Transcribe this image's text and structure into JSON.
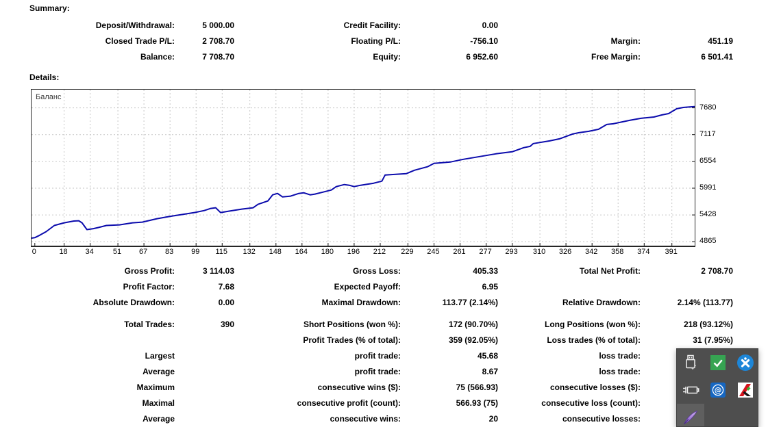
{
  "summary": {
    "title": "Summary:",
    "rows": [
      {
        "c1": {
          "label": "Deposit/Withdrawal:",
          "value": "5 000.00"
        },
        "c2": {
          "label": "Credit Facility:",
          "value": "0.00"
        },
        "c3": {
          "label": "",
          "value": ""
        }
      },
      {
        "c1": {
          "label": "Closed Trade P/L:",
          "value": "2 708.70"
        },
        "c2": {
          "label": "Floating P/L:",
          "value": "-756.10"
        },
        "c3": {
          "label": "Margin:",
          "value": "451.19"
        }
      },
      {
        "c1": {
          "label": "Balance:",
          "value": "7 708.70"
        },
        "c2": {
          "label": "Equity:",
          "value": "6 952.60"
        },
        "c3": {
          "label": "Free Margin:",
          "value": "6 501.41"
        }
      }
    ]
  },
  "details": {
    "title": "Details:"
  },
  "chart_data": {
    "type": "line",
    "title": "",
    "legend": "Баланс",
    "xlabel": "",
    "ylabel": "",
    "grid": "dashed",
    "x_ticks": [
      0,
      18,
      34,
      51,
      67,
      83,
      99,
      115,
      132,
      148,
      164,
      180,
      196,
      212,
      229,
      245,
      261,
      277,
      293,
      310,
      326,
      342,
      358,
      374,
      391
    ],
    "y_ticks": [
      7680,
      7117,
      6554,
      5991,
      5428,
      4865
    ],
    "xlim": [
      -2,
      405
    ],
    "ylim": [
      4782,
      8062
    ],
    "series": [
      {
        "name": "Баланс",
        "color": "#0b0bac",
        "points": [
          [
            -2,
            4940
          ],
          [
            0,
            4950
          ],
          [
            3,
            5000
          ],
          [
            7,
            5077
          ],
          [
            12,
            5206
          ],
          [
            18,
            5263
          ],
          [
            24,
            5300
          ],
          [
            27,
            5306
          ],
          [
            29,
            5263
          ],
          [
            32,
            5120
          ],
          [
            36,
            5140
          ],
          [
            39,
            5163
          ],
          [
            44,
            5206
          ],
          [
            52,
            5220
          ],
          [
            60,
            5263
          ],
          [
            66,
            5277
          ],
          [
            75,
            5349
          ],
          [
            82,
            5392
          ],
          [
            90,
            5435
          ],
          [
            98,
            5478
          ],
          [
            104,
            5520
          ],
          [
            108,
            5564
          ],
          [
            111,
            5579
          ],
          [
            114,
            5478
          ],
          [
            119,
            5507
          ],
          [
            127,
            5550
          ],
          [
            134,
            5579
          ],
          [
            137,
            5651
          ],
          [
            143,
            5722
          ],
          [
            146,
            5851
          ],
          [
            149,
            5880
          ],
          [
            152,
            5808
          ],
          [
            157,
            5823
          ],
          [
            162,
            5880
          ],
          [
            165,
            5894
          ],
          [
            169,
            5851
          ],
          [
            172,
            5866
          ],
          [
            177,
            5909
          ],
          [
            182,
            5952
          ],
          [
            185,
            6024
          ],
          [
            190,
            6067
          ],
          [
            193,
            6052
          ],
          [
            196,
            6024
          ],
          [
            200,
            6052
          ],
          [
            208,
            6095
          ],
          [
            213,
            6138
          ],
          [
            215,
            6267
          ],
          [
            228,
            6296
          ],
          [
            233,
            6368
          ],
          [
            241,
            6440
          ],
          [
            245,
            6512
          ],
          [
            255,
            6540
          ],
          [
            263,
            6598
          ],
          [
            273,
            6655
          ],
          [
            283,
            6712
          ],
          [
            293,
            6756
          ],
          [
            300,
            6842
          ],
          [
            304,
            6870
          ],
          [
            306,
            6928
          ],
          [
            316,
            6985
          ],
          [
            322,
            7028
          ],
          [
            330,
            7129
          ],
          [
            334,
            7157
          ],
          [
            340,
            7186
          ],
          [
            346,
            7229
          ],
          [
            351,
            7330
          ],
          [
            355,
            7344
          ],
          [
            365,
            7416
          ],
          [
            372,
            7459
          ],
          [
            380,
            7487
          ],
          [
            385,
            7531
          ],
          [
            389,
            7559
          ],
          [
            394,
            7660
          ],
          [
            398,
            7688
          ],
          [
            402,
            7700
          ],
          [
            405,
            7706
          ]
        ]
      }
    ]
  },
  "stats": {
    "rows": [
      {
        "c1": {
          "label": "Gross Profit:",
          "value": "3 114.03"
        },
        "c2": {
          "label": "Gross Loss:",
          "value": "405.33"
        },
        "c3": {
          "label": "Total Net Profit:",
          "value": "2 708.70"
        }
      },
      {
        "c1": {
          "label": "Profit Factor:",
          "value": "7.68"
        },
        "c2": {
          "label": "Expected Payoff:",
          "value": "6.95"
        },
        "c3": {
          "label": "",
          "value": ""
        }
      },
      {
        "c1": {
          "label": "Absolute Drawdown:",
          "value": "0.00"
        },
        "c2": {
          "label": "Maximal Drawdown:",
          "value": "113.77 (2.14%)"
        },
        "c3": {
          "label": "Relative Drawdown:",
          "value": "2.14% (113.77)"
        }
      },
      {
        "c1": {
          "label": "Total Trades:",
          "value": "390"
        },
        "c2": {
          "label": "Short Positions (won %):",
          "value": "172 (90.70%)"
        },
        "c3": {
          "label": "Long Positions (won %):",
          "value": "218 (93.12%)"
        }
      },
      {
        "c1": {
          "label": "",
          "value": ""
        },
        "c2": {
          "label": "Profit Trades (% of total):",
          "value": "359 (92.05%)"
        },
        "c3": {
          "label": "Loss trades (% of total):",
          "value": "31 (7.95%)"
        }
      },
      {
        "c1": {
          "label": "Largest",
          "value": ""
        },
        "c2": {
          "label": "profit trade:",
          "value": "45.68"
        },
        "c3": {
          "label": "loss trade:",
          "value": ""
        }
      },
      {
        "c1": {
          "label": "Average",
          "value": ""
        },
        "c2": {
          "label": "profit trade:",
          "value": "8.67"
        },
        "c3": {
          "label": "loss trade:",
          "value": ""
        }
      },
      {
        "c1": {
          "label": "Maximum",
          "value": ""
        },
        "c2": {
          "label": "consecutive wins ($):",
          "value": "75 (566.93)"
        },
        "c3": {
          "label": "consecutive losses ($):",
          "value": ""
        }
      },
      {
        "c1": {
          "label": "Maximal",
          "value": ""
        },
        "c2": {
          "label": "consecutive profit (count):",
          "value": "566.93 (75)"
        },
        "c3": {
          "label": "consecutive loss (count):",
          "value": ""
        }
      },
      {
        "c1": {
          "label": "Average",
          "value": ""
        },
        "c2": {
          "label": "consecutive wins:",
          "value": "20"
        },
        "c3": {
          "label": "consecutive losses:",
          "value": ""
        }
      }
    ]
  },
  "tray": {
    "panel_color": "#4e4e4e",
    "icons": [
      "usb-device",
      "green-check",
      "blue-x",
      "power-battery",
      "at-mail",
      "kaspersky",
      "feather-quill"
    ]
  }
}
